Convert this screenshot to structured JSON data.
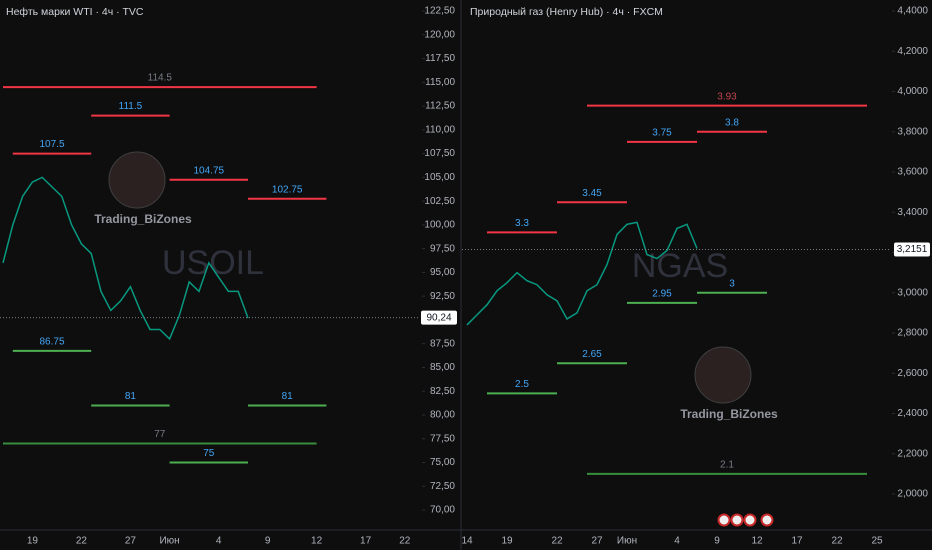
{
  "chart_data": [
    {
      "type": "line",
      "title": "Нефть марки WTI · 4ч · TVC",
      "watermark": "USOIL",
      "logo_text": "Trading_BiZones",
      "color": "#089981",
      "categories": [
        null,
        null,
        null,
        "19",
        null,
        null,
        null,
        null,
        "22",
        null,
        null,
        null,
        null,
        "27",
        null,
        null,
        null,
        "Июн",
        null,
        null,
        null,
        null,
        "4",
        null,
        null,
        null,
        null,
        "9",
        null,
        null,
        null,
        null,
        "12",
        null,
        null,
        null,
        null,
        "17",
        null,
        null,
        null,
        "22",
        null
      ],
      "values": [
        96,
        100,
        103,
        104.5,
        105,
        104,
        103,
        100,
        98,
        97,
        93,
        91,
        92,
        93.5,
        91,
        89,
        89,
        88,
        90.5,
        94,
        93,
        96,
        94.5,
        93,
        93,
        90.2,
        null,
        null,
        null,
        null,
        null,
        null,
        null,
        null,
        null,
        null,
        null,
        null,
        null,
        null,
        null,
        null,
        null
      ],
      "ylim": [
        67.9,
        123.66
      ],
      "yticks": [
        {
          "value": 70,
          "label": "70,00"
        },
        {
          "value": 72.5,
          "label": "72,50"
        },
        {
          "value": 75,
          "label": "75,00"
        },
        {
          "value": 77.5,
          "label": "77,50"
        },
        {
          "value": 80,
          "label": "80,00"
        },
        {
          "value": 82.5,
          "label": "82,50"
        },
        {
          "value": 85,
          "label": "85,00"
        },
        {
          "value": 87.5,
          "label": "87,50"
        },
        {
          "value": 90,
          "label": "90,00"
        },
        {
          "value": 92.5,
          "label": "92,50"
        },
        {
          "value": 95,
          "label": "95,00"
        },
        {
          "value": 97.5,
          "label": "97,50"
        },
        {
          "value": 100,
          "label": "100,00"
        },
        {
          "value": 102.5,
          "label": "102,50"
        },
        {
          "value": 105,
          "label": "105,00"
        },
        {
          "value": 107.5,
          "label": "107,50"
        },
        {
          "value": 110,
          "label": "110,00"
        },
        {
          "value": 112.5,
          "label": "112,50"
        },
        {
          "value": 115,
          "label": "115,00"
        },
        {
          "value": 117.5,
          "label": "117,50"
        },
        {
          "value": 120,
          "label": "120,00"
        },
        {
          "value": 122.5,
          "label": "122,50"
        }
      ],
      "current_price": {
        "value": 90.24,
        "label": "90,24"
      },
      "levels": [
        {
          "value": 114.5,
          "x": [
            0,
            32
          ],
          "color": "#f23645",
          "label_color": "#787b86"
        },
        {
          "value": 111.5,
          "x": [
            9,
            17
          ],
          "color": "#f23645",
          "label_color": "#42a5f5"
        },
        {
          "value": 107.5,
          "x": [
            1,
            9
          ],
          "color": "#f23645",
          "label_color": "#42a5f5"
        },
        {
          "value": 104.75,
          "x": [
            17,
            25
          ],
          "color": "#f23645",
          "label_color": "#42a5f5"
        },
        {
          "value": 102.75,
          "x": [
            25,
            33
          ],
          "color": "#f23645",
          "label_color": "#42a5f5"
        },
        {
          "value": 86.75,
          "x": [
            1,
            9
          ],
          "color": "#4caf50",
          "label_color": "#42a5f5"
        },
        {
          "value": 81,
          "x": [
            9,
            17
          ],
          "color": "#4caf50",
          "label_color": "#42a5f5"
        },
        {
          "value": 81,
          "x": [
            25,
            33
          ],
          "color": "#4caf50",
          "label_color": "#42a5f5"
        },
        {
          "value": 77,
          "x": [
            0,
            32
          ],
          "color": "#388e3c",
          "label_color": "#787b86"
        },
        {
          "value": 75,
          "x": [
            17,
            25
          ],
          "color": "#4caf50",
          "label_color": "#42a5f5"
        }
      ]
    },
    {
      "type": "line",
      "title": "Природный газ (Henry Hub) · 4ч · FXCM",
      "watermark": "NGAS",
      "logo_text": "Trading_BiZones",
      "color": "#089981",
      "categories": [
        "14",
        null,
        null,
        null,
        "19",
        null,
        null,
        null,
        null,
        "22",
        null,
        null,
        null,
        "27",
        null,
        null,
        "Июн",
        null,
        null,
        null,
        null,
        "4",
        null,
        null,
        null,
        "9",
        null,
        null,
        null,
        "12",
        null,
        null,
        null,
        "17",
        null,
        null,
        null,
        "22",
        null,
        null,
        null,
        "25"
      ],
      "values": [
        2.84,
        2.89,
        2.94,
        3.01,
        3.05,
        3.1,
        3.06,
        3.04,
        2.99,
        2.96,
        2.87,
        2.9,
        3.01,
        3.04,
        3.14,
        3.29,
        3.34,
        3.35,
        3.19,
        3.17,
        3.21,
        3.32,
        3.34,
        3.22,
        null,
        null,
        null,
        null,
        null,
        null,
        null,
        null,
        null,
        null,
        null,
        null,
        null,
        null,
        null,
        null,
        null,
        null
      ],
      "ylim": [
        1.821,
        4.455
      ],
      "yticks": [
        {
          "value": 2,
          "label": "2,0000"
        },
        {
          "value": 2.2,
          "label": "2,2000"
        },
        {
          "value": 2.4,
          "label": "2,4000"
        },
        {
          "value": 2.6,
          "label": "2,6000"
        },
        {
          "value": 2.8,
          "label": "2,8000"
        },
        {
          "value": 3,
          "label": "3,0000"
        },
        {
          "value": 3.2,
          "label": "3,2000"
        },
        {
          "value": 3.4,
          "label": "3,4000"
        },
        {
          "value": 3.6,
          "label": "3,6000"
        },
        {
          "value": 3.8,
          "label": "3,8000"
        },
        {
          "value": 4,
          "label": "4,0000"
        },
        {
          "value": 4.2,
          "label": "4,2000"
        },
        {
          "value": 4.4,
          "label": "4,4000"
        }
      ],
      "current_price": {
        "value": 3.2151,
        "label": "3,2151"
      },
      "levels": [
        {
          "value": 3.93,
          "x": [
            12,
            40
          ],
          "color": "#f23645",
          "label_color": "#c2434f"
        },
        {
          "value": 3.8,
          "x": [
            23,
            30
          ],
          "color": "#f23645",
          "label_color": "#42a5f5"
        },
        {
          "value": 3.75,
          "x": [
            16,
            23
          ],
          "color": "#f23645",
          "label_color": "#42a5f5"
        },
        {
          "value": 3.45,
          "x": [
            9,
            16
          ],
          "color": "#f23645",
          "label_color": "#42a5f5"
        },
        {
          "value": 3.3,
          "x": [
            2,
            9
          ],
          "color": "#f23645",
          "label_color": "#42a5f5"
        },
        {
          "value": 3,
          "x": [
            23,
            30
          ],
          "color": "#4caf50",
          "label_color": "#42a5f5"
        },
        {
          "value": 2.95,
          "x": [
            16,
            23
          ],
          "color": "#4caf50",
          "label_color": "#42a5f5"
        },
        {
          "value": 2.65,
          "x": [
            9,
            16
          ],
          "color": "#4caf50",
          "label_color": "#42a5f5"
        },
        {
          "value": 2.5,
          "x": [
            2,
            9
          ],
          "color": "#4caf50",
          "label_color": "#42a5f5"
        },
        {
          "value": 2.1,
          "x": [
            12,
            40
          ],
          "color": "#388e3c",
          "label_color": "#787b86"
        }
      ]
    }
  ]
}
